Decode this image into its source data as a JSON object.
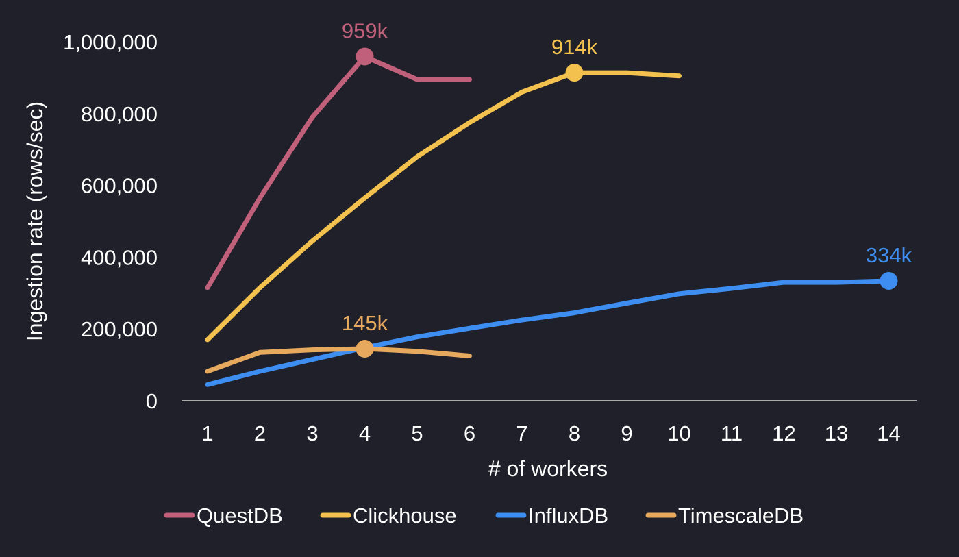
{
  "chart_data": {
    "type": "line",
    "xlabel": "# of workers",
    "ylabel": "Ingestion rate (rows/sec)",
    "ylim": [
      0,
      1000000
    ],
    "xlim": [
      1,
      14
    ],
    "x_ticks": [
      1,
      2,
      3,
      4,
      5,
      6,
      7,
      8,
      9,
      10,
      11,
      12,
      13,
      14
    ],
    "y_ticks": [
      0,
      200000,
      400000,
      600000,
      800000,
      1000000
    ],
    "y_tick_labels": [
      "0",
      "200,000",
      "400,000",
      "600,000",
      "800,000",
      "1,000,000"
    ],
    "grid": false,
    "legend_position": "bottom",
    "background_color": "#1f2029",
    "text_color": "#ffffff",
    "series": [
      {
        "name": "QuestDB",
        "color": "#c0607a",
        "x": [
          1,
          2,
          3,
          4,
          5,
          6
        ],
        "values": [
          315000,
          565000,
          790000,
          959000,
          895000,
          895000
        ],
        "peak": {
          "x": 4,
          "value": 959000,
          "label": "959k"
        }
      },
      {
        "name": "Clickhouse",
        "color": "#f2c14e",
        "x": [
          1,
          2,
          3,
          4,
          5,
          6,
          7,
          8,
          9,
          10
        ],
        "values": [
          170000,
          315000,
          445000,
          565000,
          680000,
          775000,
          860000,
          914000,
          914000,
          905000
        ],
        "peak": {
          "x": 8,
          "value": 914000,
          "label": "914k"
        }
      },
      {
        "name": "InfluxDB",
        "color": "#3d8ef0",
        "x": [
          1,
          2,
          3,
          4,
          5,
          6,
          7,
          8,
          9,
          10,
          11,
          12,
          13,
          14
        ],
        "values": [
          45000,
          82000,
          115000,
          148000,
          178000,
          202000,
          225000,
          245000,
          272000,
          298000,
          313000,
          330000,
          330000,
          334000
        ],
        "peak": {
          "x": 14,
          "value": 334000,
          "label": "334k"
        }
      },
      {
        "name": "TimescaleDB",
        "color": "#e7a95e",
        "x": [
          1,
          2,
          3,
          4,
          5,
          6
        ],
        "values": [
          82000,
          135000,
          142000,
          145000,
          138000,
          125000
        ],
        "peak": {
          "x": 4,
          "value": 145000,
          "label": "145k"
        }
      }
    ]
  }
}
